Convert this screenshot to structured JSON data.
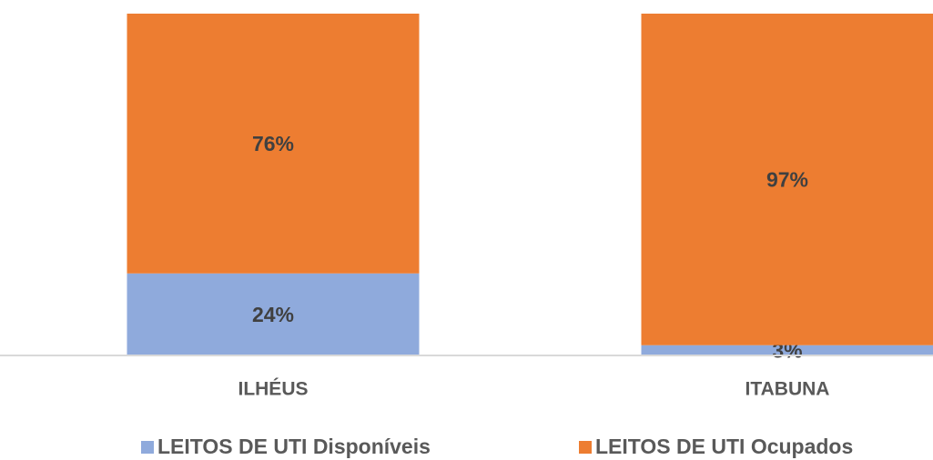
{
  "chart_data": {
    "type": "stacked_bar",
    "categories": [
      "ILHÉUS",
      "ITABUNA"
    ],
    "series": [
      {
        "name": "LEITOS DE UTI Disponíveis",
        "color": "#8faadc",
        "values": [
          24,
          3
        ],
        "value_labels": [
          "24%",
          "3%"
        ]
      },
      {
        "name": "LEITOS DE UTI Ocupados",
        "color": "#ed7d31",
        "values": [
          76,
          97
        ],
        "value_labels": [
          "76%",
          "97%"
        ]
      }
    ],
    "ylim": [
      0,
      100
    ],
    "legend": "bottom"
  }
}
